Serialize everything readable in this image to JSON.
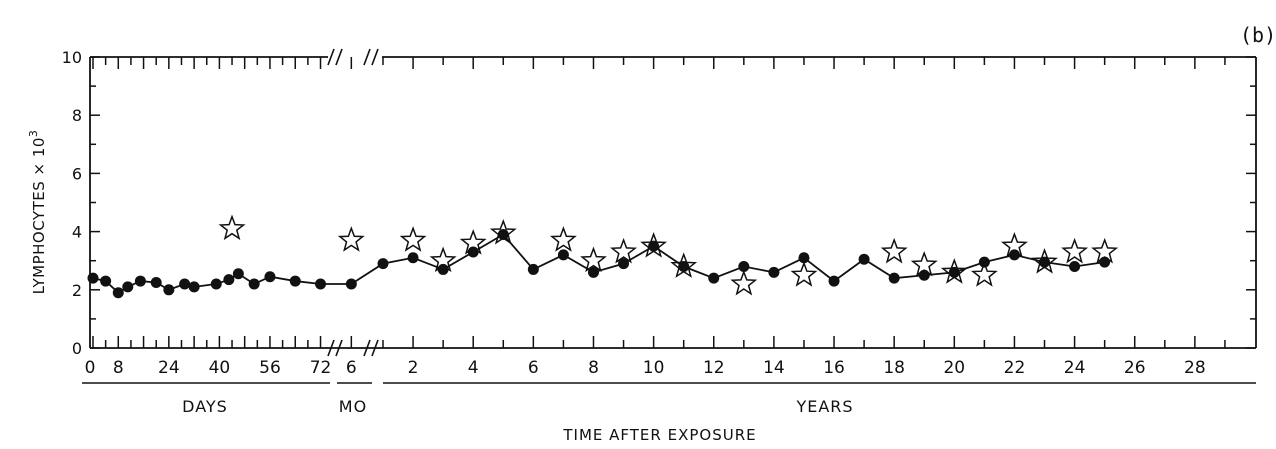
{
  "chart_data": {
    "type": "scatter",
    "panel_label": "(b)",
    "ylabel": "LYMPHOCYTES × 10",
    "ylabel_exponent": "3",
    "xlabel": "TIME AFTER EXPOSURE",
    "ylim": [
      0,
      10
    ],
    "y_ticks": [
      "0",
      "2",
      "4",
      "6",
      "8",
      "10"
    ],
    "grid": false,
    "x_segments": [
      {
        "name": "DAYS",
        "unit": "day",
        "range": [
          0,
          75
        ],
        "tick_labels": [
          "0",
          "8",
          "24",
          "40",
          "56",
          "72"
        ],
        "tick_values": [
          0,
          8,
          24,
          40,
          56,
          72
        ]
      },
      {
        "name": "MO",
        "unit": "month",
        "range": [
          5.5,
          7.0
        ],
        "tick_labels": [
          "6"
        ],
        "tick_values": [
          6
        ]
      },
      {
        "name": "YEARS",
        "unit": "year",
        "range": [
          1,
          30
        ],
        "tick_labels": [
          "2",
          "4",
          "6",
          "8",
          "10",
          "12",
          "14",
          "16",
          "18",
          "20",
          "22",
          "24",
          "26",
          "28"
        ],
        "tick_values": [
          2,
          4,
          6,
          8,
          10,
          12,
          14,
          16,
          18,
          20,
          22,
          24,
          26,
          28
        ]
      }
    ],
    "series": [
      {
        "marker": "filled-circle",
        "connected": true,
        "points": [
          {
            "segment": "DAYS",
            "x": 0,
            "y": 2.4
          },
          {
            "segment": "DAYS",
            "x": 4,
            "y": 2.3
          },
          {
            "segment": "DAYS",
            "x": 8,
            "y": 1.9
          },
          {
            "segment": "DAYS",
            "x": 11,
            "y": 2.1
          },
          {
            "segment": "DAYS",
            "x": 15,
            "y": 2.3
          },
          {
            "segment": "DAYS",
            "x": 20,
            "y": 2.25
          },
          {
            "segment": "DAYS",
            "x": 24,
            "y": 2.0
          },
          {
            "segment": "DAYS",
            "x": 29,
            "y": 2.2
          },
          {
            "segment": "DAYS",
            "x": 32,
            "y": 2.1
          },
          {
            "segment": "DAYS",
            "x": 39,
            "y": 2.2
          },
          {
            "segment": "DAYS",
            "x": 43,
            "y": 2.35
          },
          {
            "segment": "DAYS",
            "x": 46,
            "y": 2.55
          },
          {
            "segment": "DAYS",
            "x": 51,
            "y": 2.2
          },
          {
            "segment": "DAYS",
            "x": 56,
            "y": 2.45
          },
          {
            "segment": "DAYS",
            "x": 64,
            "y": 2.3
          },
          {
            "segment": "DAYS",
            "x": 72,
            "y": 2.2
          },
          {
            "segment": "MO",
            "x": 6,
            "y": 2.2
          },
          {
            "segment": "YEARS",
            "x": 1,
            "y": 2.9
          },
          {
            "segment": "YEARS",
            "x": 2,
            "y": 3.1
          },
          {
            "segment": "YEARS",
            "x": 3,
            "y": 2.7
          },
          {
            "segment": "YEARS",
            "x": 4,
            "y": 3.3
          },
          {
            "segment": "YEARS",
            "x": 5,
            "y": 3.9
          },
          {
            "segment": "YEARS",
            "x": 6,
            "y": 2.7
          },
          {
            "segment": "YEARS",
            "x": 7,
            "y": 3.2
          },
          {
            "segment": "YEARS",
            "x": 8,
            "y": 2.6
          },
          {
            "segment": "YEARS",
            "x": 9,
            "y": 2.9
          },
          {
            "segment": "YEARS",
            "x": 10,
            "y": 3.5
          },
          {
            "segment": "YEARS",
            "x": 11,
            "y": 2.8
          },
          {
            "segment": "YEARS",
            "x": 12,
            "y": 2.4
          },
          {
            "segment": "YEARS",
            "x": 13,
            "y": 2.8
          },
          {
            "segment": "YEARS",
            "x": 14,
            "y": 2.6
          },
          {
            "segment": "YEARS",
            "x": 15,
            "y": 3.1
          },
          {
            "segment": "YEARS",
            "x": 16,
            "y": 2.3
          },
          {
            "segment": "YEARS",
            "x": 17,
            "y": 3.05
          },
          {
            "segment": "YEARS",
            "x": 18,
            "y": 2.4
          },
          {
            "segment": "YEARS",
            "x": 19,
            "y": 2.5
          },
          {
            "segment": "YEARS",
            "x": 20,
            "y": 2.6
          },
          {
            "segment": "YEARS",
            "x": 21,
            "y": 2.95
          },
          {
            "segment": "YEARS",
            "x": 22,
            "y": 3.2
          },
          {
            "segment": "YEARS",
            "x": 23,
            "y": 2.95
          },
          {
            "segment": "YEARS",
            "x": 24,
            "y": 2.8
          },
          {
            "segment": "YEARS",
            "x": 25,
            "y": 2.95
          }
        ]
      },
      {
        "marker": "open-star",
        "connected": false,
        "points": [
          {
            "segment": "DAYS",
            "x": 44,
            "y": 4.1
          },
          {
            "segment": "MO",
            "x": 6,
            "y": 3.7
          },
          {
            "segment": "YEARS",
            "x": 2,
            "y": 3.7
          },
          {
            "segment": "YEARS",
            "x": 3,
            "y": 3.0
          },
          {
            "segment": "YEARS",
            "x": 4,
            "y": 3.6
          },
          {
            "segment": "YEARS",
            "x": 5,
            "y": 3.95
          },
          {
            "segment": "YEARS",
            "x": 7,
            "y": 3.7
          },
          {
            "segment": "YEARS",
            "x": 8,
            "y": 3.0
          },
          {
            "segment": "YEARS",
            "x": 9,
            "y": 3.3
          },
          {
            "segment": "YEARS",
            "x": 10,
            "y": 3.5
          },
          {
            "segment": "YEARS",
            "x": 11,
            "y": 2.8
          },
          {
            "segment": "YEARS",
            "x": 13,
            "y": 2.2
          },
          {
            "segment": "YEARS",
            "x": 15,
            "y": 2.5
          },
          {
            "segment": "YEARS",
            "x": 18,
            "y": 3.3
          },
          {
            "segment": "YEARS",
            "x": 19,
            "y": 2.85
          },
          {
            "segment": "YEARS",
            "x": 20,
            "y": 2.6
          },
          {
            "segment": "YEARS",
            "x": 21,
            "y": 2.5
          },
          {
            "segment": "YEARS",
            "x": 22,
            "y": 3.5
          },
          {
            "segment": "YEARS",
            "x": 23,
            "y": 2.95
          },
          {
            "segment": "YEARS",
            "x": 24,
            "y": 3.3
          },
          {
            "segment": "YEARS",
            "x": 25,
            "y": 3.3
          }
        ]
      }
    ]
  }
}
